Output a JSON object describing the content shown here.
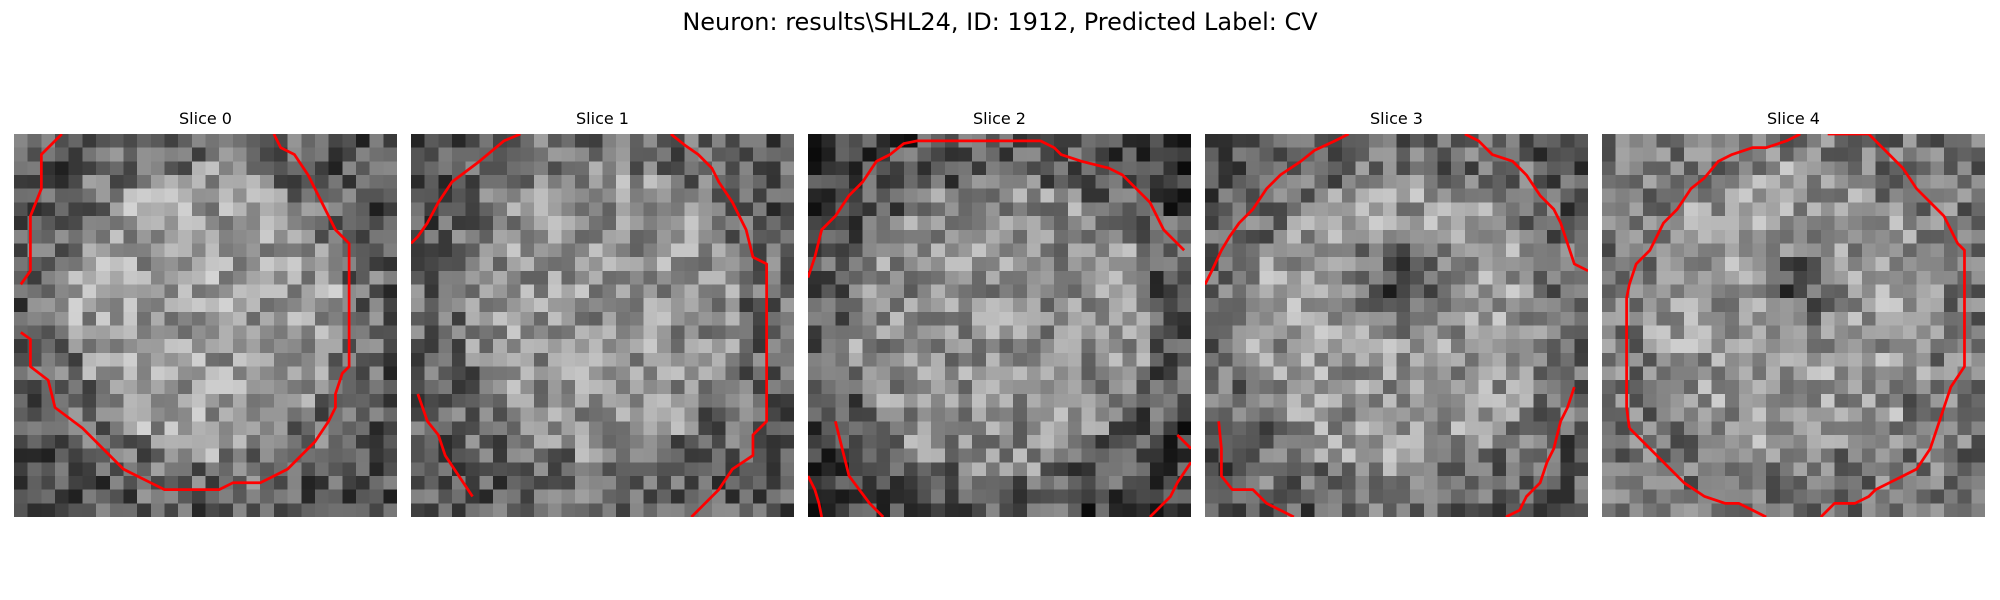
{
  "title": "Neuron: results\\SHL24, ID: 1912, Predicted Label: CV",
  "slices": [
    {
      "label": "Slice 0"
    },
    {
      "label": "Slice 1"
    },
    {
      "label": "Slice 2"
    },
    {
      "label": "Slice 3"
    },
    {
      "label": "Slice 4"
    }
  ],
  "contour_color": "#ff0000",
  "colormap": "grayscale"
}
